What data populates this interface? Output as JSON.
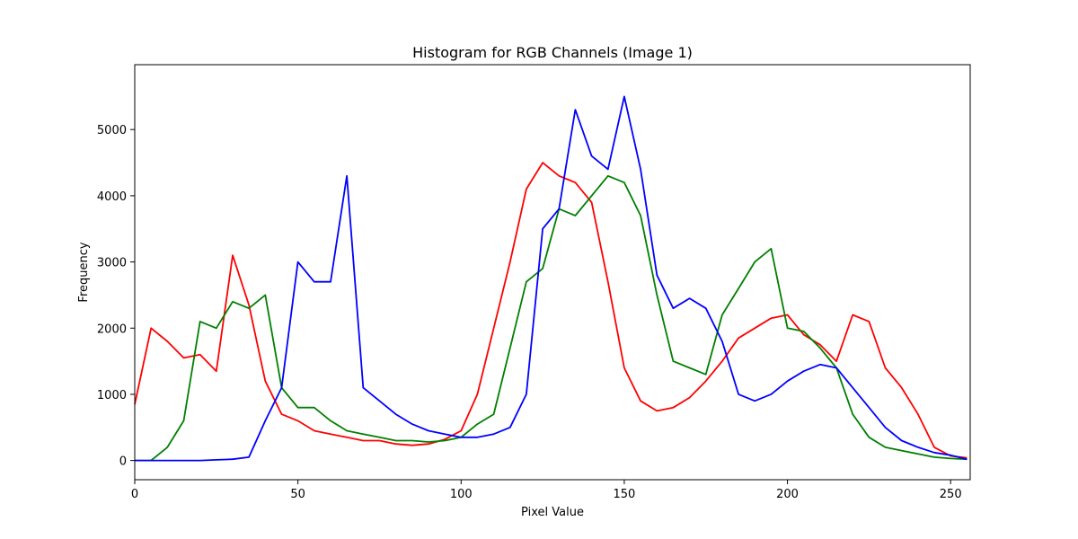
{
  "chart_data": {
    "type": "line",
    "title": "Histogram for RGB Channels (Image 1)",
    "xlabel": "Pixel Value",
    "ylabel": "Frequency",
    "xlim": [
      0,
      256
    ],
    "ylim": [
      -290,
      5980
    ],
    "xticks": [
      0,
      50,
      100,
      150,
      200,
      250
    ],
    "yticks": [
      0,
      1000,
      2000,
      3000,
      4000,
      5000
    ],
    "grid": false,
    "legend": "none",
    "x": [
      0,
      5,
      10,
      15,
      20,
      25,
      30,
      35,
      40,
      45,
      50,
      55,
      60,
      65,
      70,
      75,
      80,
      85,
      90,
      95,
      100,
      105,
      110,
      115,
      120,
      125,
      130,
      135,
      140,
      145,
      150,
      155,
      160,
      165,
      170,
      175,
      180,
      185,
      190,
      195,
      200,
      205,
      210,
      215,
      220,
      225,
      230,
      235,
      240,
      245,
      250,
      255
    ],
    "series": [
      {
        "color": "#ff0000",
        "values": [
          850,
          2000,
          1800,
          1550,
          1600,
          1350,
          3100,
          2350,
          1200,
          700,
          600,
          450,
          400,
          350,
          300,
          300,
          250,
          230,
          250,
          320,
          450,
          1000,
          2000,
          3000,
          4100,
          4500,
          4300,
          4200,
          3900,
          2700,
          1400,
          900,
          750,
          800,
          950,
          1200,
          1500,
          1850,
          2000,
          2150,
          2200,
          1900,
          1750,
          1500,
          2200,
          2100,
          1400,
          1100,
          700,
          200,
          70,
          40
        ]
      },
      {
        "color": "#008000",
        "values": [
          0,
          0,
          200,
          600,
          2100,
          2000,
          2400,
          2300,
          2500,
          1100,
          800,
          800,
          600,
          450,
          400,
          350,
          300,
          300,
          280,
          300,
          350,
          550,
          700,
          1700,
          2700,
          2900,
          3800,
          3700,
          4000,
          4300,
          4200,
          3700,
          2500,
          1500,
          1400,
          1300,
          2200,
          2600,
          3000,
          3200,
          2000,
          1950,
          1700,
          1400,
          700,
          350,
          200,
          150,
          100,
          50,
          30,
          20
        ]
      },
      {
        "color": "#0000ff",
        "values": [
          0,
          0,
          0,
          0,
          0,
          10,
          20,
          50,
          600,
          1100,
          3000,
          2700,
          2700,
          4300,
          1100,
          900,
          700,
          550,
          450,
          400,
          350,
          350,
          400,
          500,
          1000,
          3500,
          3800,
          5300,
          4600,
          4400,
          5500,
          4400,
          2800,
          2300,
          2450,
          2300,
          1800,
          1000,
          900,
          1000,
          1200,
          1350,
          1450,
          1400,
          1100,
          800,
          500,
          300,
          200,
          120,
          80,
          20
        ]
      }
    ]
  }
}
